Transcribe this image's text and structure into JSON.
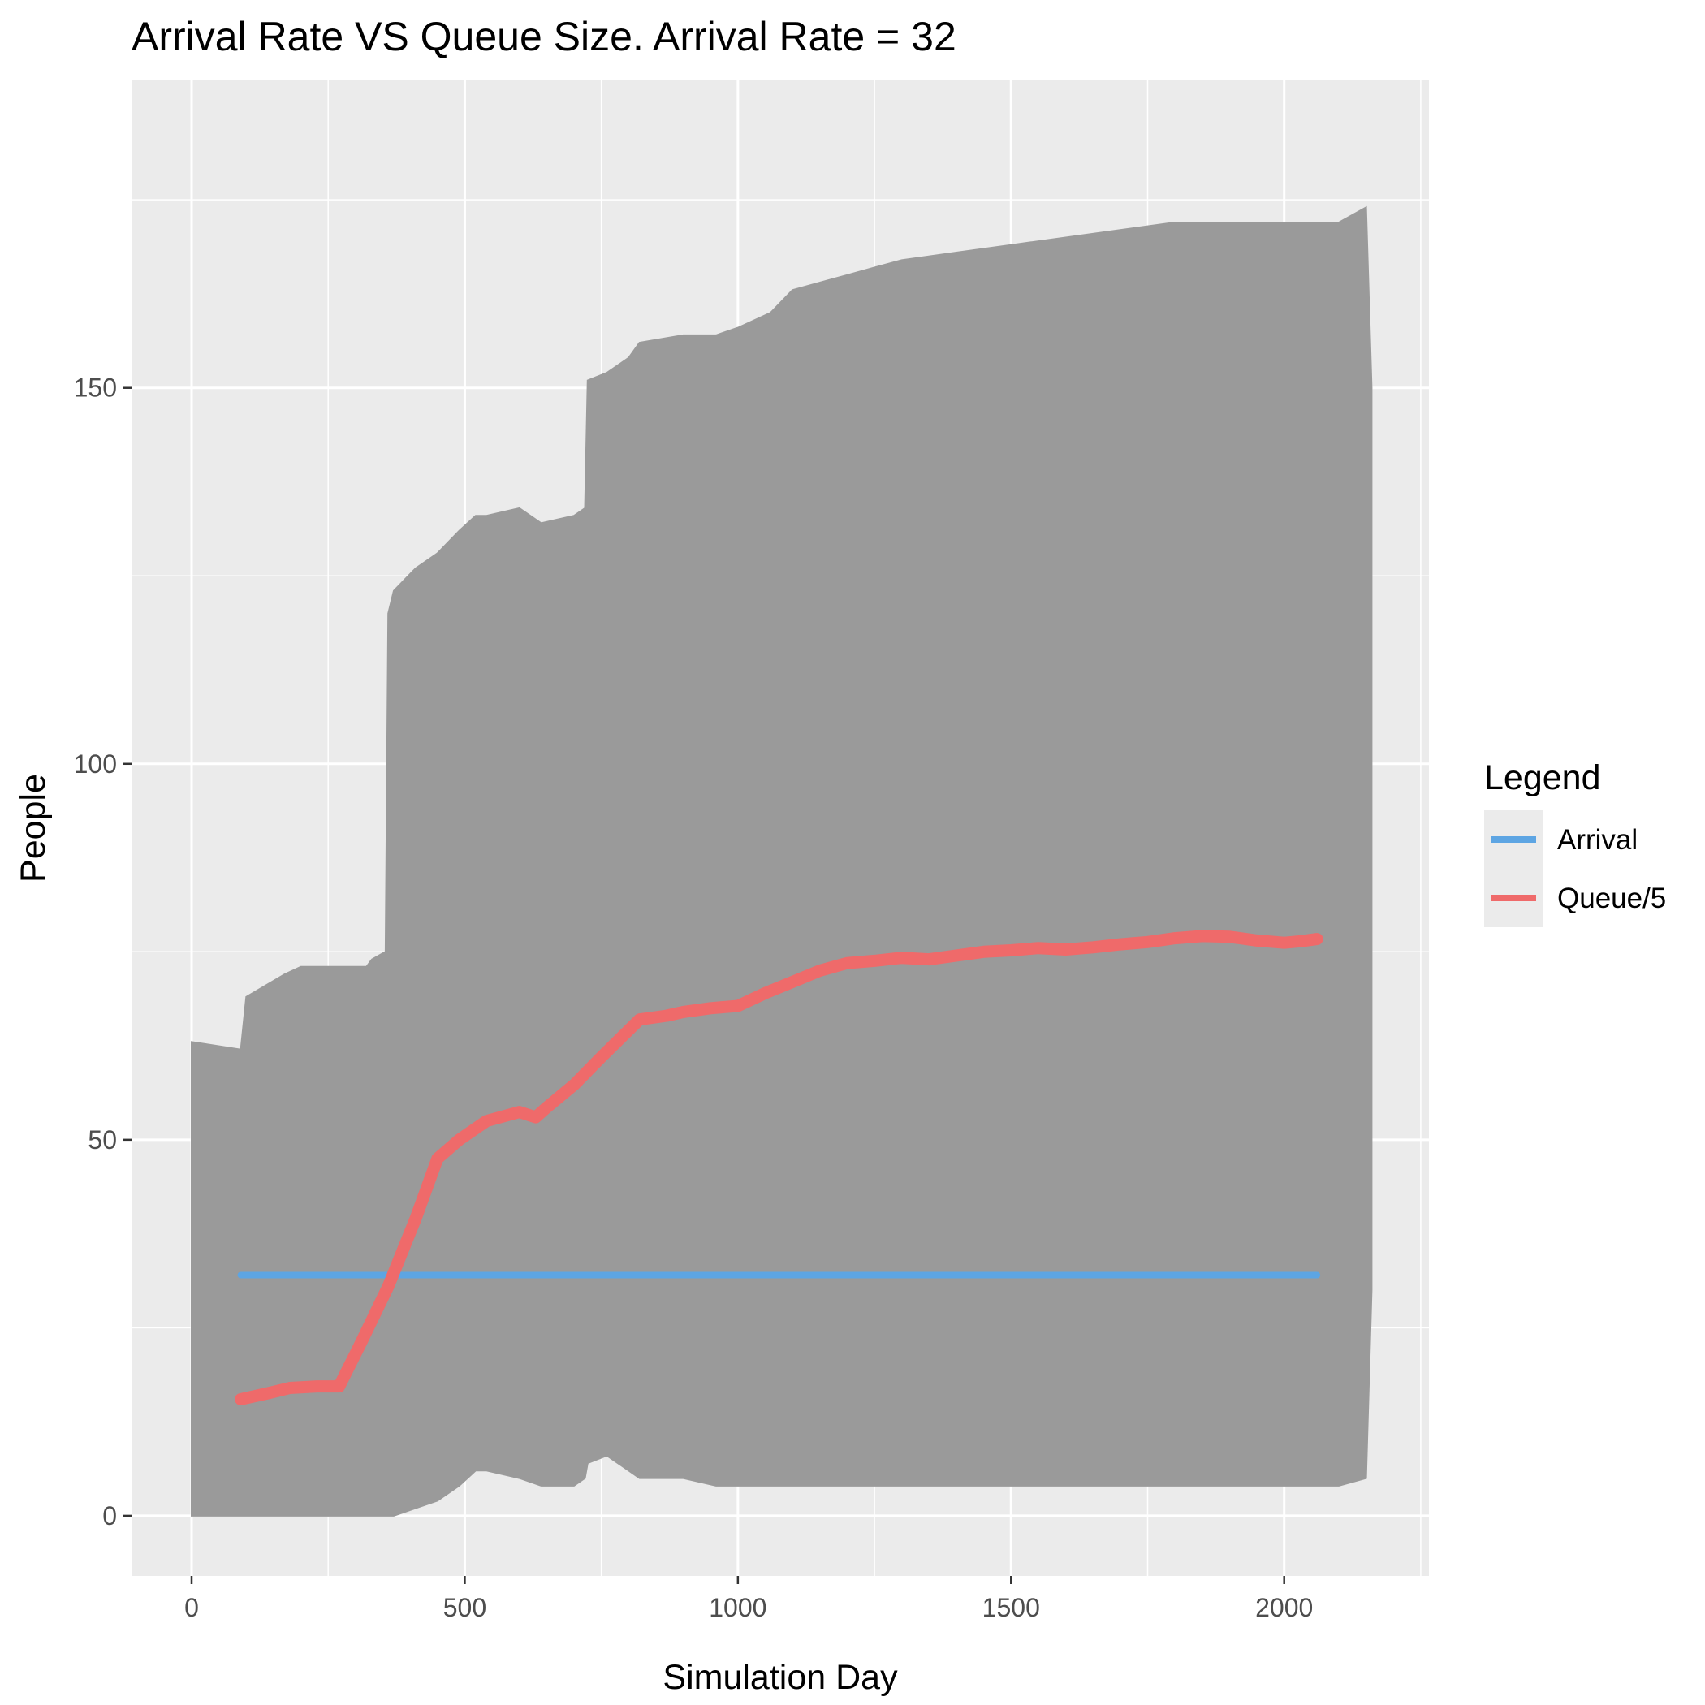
{
  "chart_data": {
    "type": "line",
    "title": "Arrival Rate VS Queue Size. Arrival Rate = 32",
    "xlabel": "Simulation Day",
    "ylabel": "People",
    "xlim": [
      -110,
      2265
    ],
    "ylim": [
      -8,
      191
    ],
    "x_ticks": [
      0,
      500,
      1000,
      1500,
      2000
    ],
    "x_tick_labels": [
      "0",
      "500",
      "1000",
      "1500",
      "2000"
    ],
    "y_ticks": [
      0,
      50,
      100,
      150
    ],
    "y_tick_labels": [
      "0",
      "50",
      "100",
      "150"
    ],
    "grid": true,
    "legend": {
      "title": "Legend",
      "position": "right",
      "entries": [
        {
          "label": "Arrival",
          "color": "#5da5e3"
        },
        {
          "label": "Queue/5",
          "color": "#ef6a6a"
        }
      ]
    },
    "queue_band": {
      "color": "#9a9a9a",
      "x": [
        0,
        90,
        100,
        170,
        200,
        320,
        330,
        355,
        360,
        370,
        410,
        450,
        490,
        520,
        540,
        600,
        640,
        700,
        720,
        725,
        760,
        800,
        820,
        900,
        960,
        1000,
        1060,
        1100,
        1200,
        1250,
        1300,
        1400,
        1500,
        1600,
        1700,
        1800,
        1900,
        2000,
        2080,
        2100,
        2150,
        2160
      ],
      "upper": [
        63,
        62,
        69,
        72,
        73,
        73,
        74,
        75,
        120,
        123,
        126,
        128,
        131,
        133,
        133,
        134,
        132,
        133,
        134,
        151,
        152,
        154,
        156,
        157,
        157,
        158,
        160,
        163,
        165,
        166,
        167,
        168,
        169,
        170,
        171,
        172,
        172,
        172,
        172,
        172,
        174,
        150
      ],
      "lower": [
        0,
        0,
        0,
        0,
        0,
        0,
        0,
        0,
        0,
        0,
        1,
        2,
        4,
        6,
        6,
        5,
        4,
        4,
        5,
        7,
        8,
        6,
        5,
        5,
        4,
        4,
        4,
        4,
        4,
        4,
        4,
        4,
        4,
        4,
        4,
        4,
        4,
        4,
        4,
        4,
        5,
        30
      ]
    },
    "series": [
      {
        "name": "Arrival",
        "color": "#5da5e3",
        "x": [
          90,
          2060
        ],
        "y": [
          32,
          32
        ]
      },
      {
        "name": "Queue/5",
        "color": "#ef6a6a",
        "x": [
          90,
          140,
          180,
          230,
          270,
          310,
          360,
          410,
          450,
          490,
          540,
          600,
          630,
          650,
          700,
          750,
          820,
          870,
          900,
          950,
          1000,
          1050,
          1100,
          1150,
          1200,
          1250,
          1300,
          1350,
          1400,
          1450,
          1500,
          1550,
          1600,
          1650,
          1700,
          1750,
          1800,
          1850,
          1900,
          1950,
          2000,
          2030,
          2060
        ],
        "y": [
          15.5,
          16.3,
          17,
          17.2,
          17.2,
          23,
          30.5,
          39.5,
          47.5,
          50,
          52.5,
          53.7,
          53,
          54.3,
          57.3,
          61,
          66,
          66.5,
          67,
          67.5,
          67.8,
          69.5,
          71,
          72.5,
          73.5,
          73.8,
          74.2,
          74,
          74.5,
          75,
          75.2,
          75.5,
          75.3,
          75.6,
          76,
          76.3,
          76.8,
          77.1,
          77,
          76.5,
          76.2,
          76.4,
          76.7
        ]
      }
    ]
  }
}
